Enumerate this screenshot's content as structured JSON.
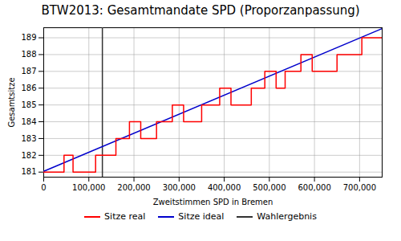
{
  "chart_data": {
    "type": "line",
    "title": "BTW2013: Gesamtmandate SPD (Proporzanpassung)",
    "xlabel": "Zweitstimmen SPD in Bremen",
    "ylabel": "Gesamtsitze",
    "xlim": [
      0,
      750000
    ],
    "ylim": [
      180.7,
      189.6
    ],
    "xticks": [
      0,
      {
        "value": 100000,
        "label": "100,000"
      },
      {
        "value": 200000,
        "label": "200,000"
      },
      {
        "value": 300000,
        "label": "300,000"
      },
      {
        "value": 400000,
        "label": "400,000"
      },
      {
        "value": 500000,
        "label": "500,000"
      },
      {
        "value": 600000,
        "label": "600,000"
      },
      {
        "value": 700000,
        "label": "700,000"
      }
    ],
    "yticks": [
      181,
      182,
      183,
      184,
      185,
      186,
      187,
      188,
      189
    ],
    "grid": true,
    "legend": "bottom",
    "series": [
      {
        "name": "Sitze real",
        "type": "line",
        "color": "#ff0000",
        "x": [
          0,
          45000,
          45000,
          65000,
          65000,
          115000,
          115000,
          160000,
          160000,
          190000,
          190000,
          215000,
          215000,
          250000,
          250000,
          285000,
          285000,
          310000,
          310000,
          350000,
          350000,
          390000,
          390000,
          415000,
          415000,
          460000,
          460000,
          490000,
          490000,
          515000,
          515000,
          535000,
          535000,
          570000,
          570000,
          595000,
          595000,
          650000,
          650000,
          685000,
          685000,
          705000,
          705000,
          750000
        ],
        "values": [
          181,
          181,
          182,
          182,
          181,
          181,
          182,
          182,
          183,
          183,
          184,
          184,
          183,
          183,
          184,
          184,
          185,
          185,
          184,
          184,
          185,
          185,
          186,
          186,
          185,
          185,
          186,
          186,
          187,
          187,
          186,
          186,
          187,
          187,
          188,
          188,
          187,
          187,
          188,
          188,
          188,
          188,
          189,
          189
        ]
      },
      {
        "name": "Sitze ideal",
        "type": "line",
        "color": "#0000cc",
        "x": [
          0,
          750000
        ],
        "values": [
          181.05,
          189.55
        ]
      },
      {
        "name": "Wahlergebnis",
        "type": "vline",
        "color": "#333333",
        "x": [
          130000
        ]
      }
    ]
  }
}
